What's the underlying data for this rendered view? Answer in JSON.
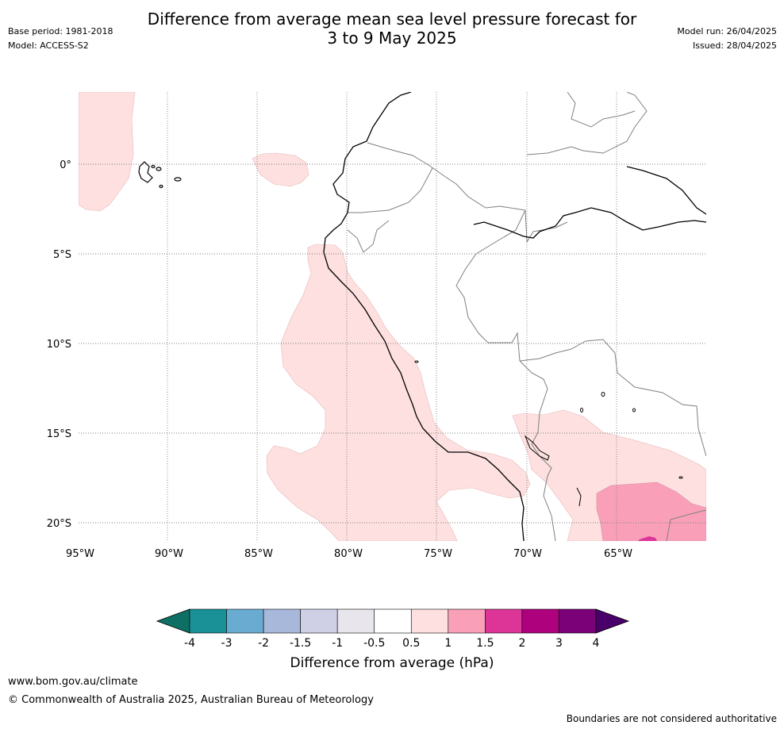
{
  "title_line1": "Difference from average mean sea level pressure forecast for",
  "title_line2": "3 to 9 May 2025",
  "base_period": "Base period: 1981-2018",
  "model": "Model: ACCESS-S2",
  "model_run": "Model run: 26/04/2025",
  "issued": "Issued: 28/04/2025",
  "lat_labels": [
    "0°",
    "5°S",
    "10°S",
    "15°S",
    "20°S"
  ],
  "lon_labels": [
    "95°W",
    "90°W",
    "85°W",
    "80°W",
    "75°W",
    "70°W",
    "65°W"
  ],
  "colorbar": {
    "tick_labels": [
      "-4",
      "-3",
      "-2",
      "-1.5",
      "-1",
      "-0.5",
      "0.5",
      "1",
      "1.5",
      "2",
      "3",
      "4"
    ],
    "colors": [
      "#0e7064",
      "#1a9097",
      "#6aabd2",
      "#a8b8db",
      "#cfd0e6",
      "#e8e6ec",
      "#ffffff",
      "#fde0df",
      "#f9a0b8",
      "#dd3497",
      "#ae017e",
      "#7a0177",
      "#49006a"
    ],
    "title": "Difference from average (hPa)"
  },
  "map_colors": {
    "anomaly_0_5_1": "#fde0df",
    "anomaly_1_1_5": "#f9a0b8",
    "anomaly_1_5_2": "#dd3497",
    "coastline": "#000000",
    "borders": "#808080",
    "gridlines": "#808080"
  },
  "website": "www.bom.gov.au/climate",
  "copyright": "© Commonwealth of Australia 2025, Australian Bureau of Meteorology",
  "disclaimer": "Boundaries are not considered authoritative"
}
